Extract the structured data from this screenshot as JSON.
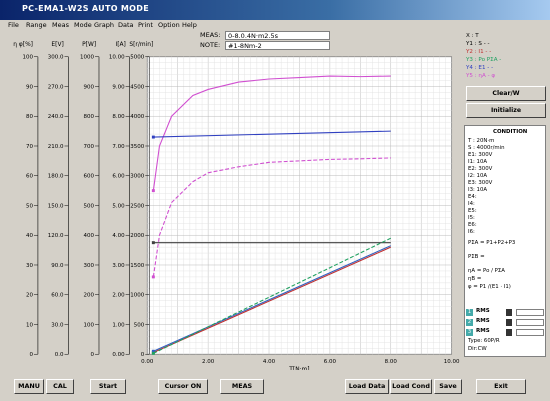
{
  "window": {
    "title": "PC-EMA1-W2S AUTO MODE"
  },
  "menu": [
    "File",
    "Range",
    "Meas",
    "Mode",
    "Graph",
    "Data",
    "Print",
    "Option",
    "Help"
  ],
  "meas": {
    "meas_label": "MEAS:",
    "meas_value": "0-8.0.4N·m2.5s",
    "note_label": "NOTE:",
    "note_value": "#1-8Nm-2"
  },
  "axes": {
    "headers": [
      "η φ[%]",
      "E[V]",
      "P[W]",
      "I[A]",
      "S[r/min]"
    ],
    "eta": [
      "100",
      "90",
      "80",
      "70",
      "60",
      "50",
      "40",
      "30",
      "20",
      "10",
      "0"
    ],
    "e": [
      "300.0",
      "270.0",
      "240.0",
      "210.0",
      "180.0",
      "150.0",
      "120.0",
      "90.0",
      "60.0",
      "30.0",
      "0.0"
    ],
    "p": [
      "1000",
      "900",
      "800",
      "700",
      "600",
      "500",
      "400",
      "300",
      "200",
      "100",
      "0"
    ],
    "i": [
      "10.00",
      "9.00",
      "8.00",
      "7.00",
      "6.00",
      "5.00",
      "4.00",
      "3.00",
      "2.00",
      "1.00",
      "0.00"
    ],
    "s": [
      "5000",
      "4500",
      "4000",
      "3500",
      "3000",
      "2500",
      "2000",
      "1500",
      "1000",
      "500",
      "0"
    ],
    "x": [
      "0.00",
      "2.00",
      "4.00",
      "6.00",
      "8.00",
      "10.00"
    ],
    "xlabel": "T[N·m]"
  },
  "chart_data": {
    "type": "line",
    "xlabel": "T[N·m]",
    "xlim": [
      0,
      10
    ],
    "ylim_S": [
      0,
      5000
    ],
    "series": [
      {
        "name": "η A",
        "color": "#d04fd0",
        "style": "solid",
        "x": [
          0.2,
          0.4,
          0.8,
          1.5,
          2.0,
          3.0,
          4.0,
          5.0,
          6.0,
          7.0,
          8.0
        ],
        "y_pct": [
          55,
          70,
          80,
          87,
          89,
          91.5,
          92.5,
          93,
          93.5,
          93.3,
          93.5
        ]
      },
      {
        "name": "φ",
        "color": "#d04fd0",
        "style": "dashed",
        "x": [
          0.2,
          0.4,
          0.8,
          1.5,
          2.0,
          3.0,
          4.0,
          5.0,
          6.0,
          7.0,
          8.0
        ],
        "y_pct": [
          26,
          40,
          51,
          58,
          61,
          63,
          64.5,
          65,
          65.5,
          65.7,
          66
        ]
      },
      {
        "name": "S",
        "color": "#3040c0",
        "style": "solid",
        "x": [
          0.2,
          8.0
        ],
        "y": [
          3650,
          3750
        ]
      },
      {
        "name": "E",
        "color": "#404040",
        "style": "solid",
        "x": [
          0.2,
          8.0
        ],
        "y_pct": [
          37.5,
          37.5
        ]
      },
      {
        "name": "P1",
        "color": "#c03030",
        "style": "solid",
        "x": [
          0.2,
          8.0
        ],
        "y_pct": [
          0.6,
          36
        ]
      },
      {
        "name": "P2",
        "color": "#3060c0",
        "style": "solid",
        "x": [
          0.2,
          8.0
        ],
        "y_pct": [
          1.0,
          36.5
        ]
      },
      {
        "name": "P3",
        "color": "#20a060",
        "style": "dashed",
        "x": [
          0.2,
          8.0
        ],
        "y_pct": [
          0.3,
          39
        ]
      }
    ]
  },
  "legend": [
    "X : T",
    "Y1 : S - -",
    "Y2 : I1 - -",
    "Y3 : Po PΣA -",
    "Y4 : E1 - -",
    "Y5 : ηA - φ"
  ],
  "buttons": {
    "clear": "Clear/W",
    "initialize": "Initialize"
  },
  "condition": {
    "title": "CONDITION",
    "lines": [
      "T : 20N·m",
      "S : 4000r/min",
      "E1: 300V",
      "I1: 10A",
      "E2: 300V",
      "I2: 10A",
      "E3: 300V",
      "I3: 10A",
      "E4:",
      "I4:",
      "E5:",
      "I5:",
      "E6:",
      "I6:"
    ],
    "formulas": [
      "PΣA = P1+P2+P3",
      "PΣB =",
      "ηA = Po / PΣA",
      "ηB =",
      "φ = P1 /(E1 · I1)"
    ],
    "rms": [
      "RMS",
      "RMS",
      "RMS"
    ],
    "rms_nums": [
      "1",
      "2",
      "3"
    ],
    "type": "Type: 60P/R",
    "dir": "Dir:CW"
  },
  "bottom": [
    "MANU",
    "CAL",
    "Start",
    "Cursor ON",
    "MEAS",
    "Load Data",
    "Load Cond",
    "Save",
    "Exit"
  ]
}
